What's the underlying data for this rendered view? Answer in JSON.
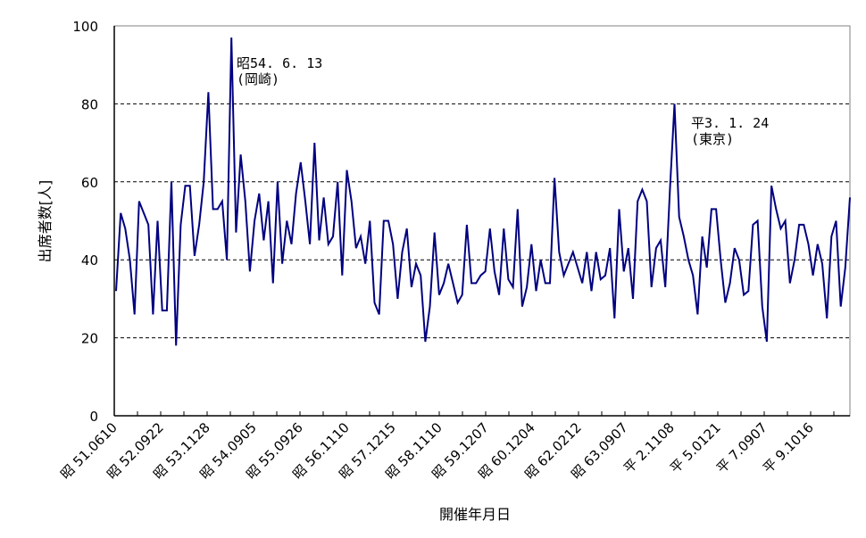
{
  "chart_data": {
    "type": "line",
    "title": "",
    "xlabel": "開催年月日",
    "ylabel": "出席者数[人]",
    "ylim": [
      0,
      100
    ],
    "yticks": [
      0,
      20,
      40,
      60,
      80,
      100
    ],
    "grid": {
      "y": true,
      "style": "dashed",
      "x": false
    },
    "legend": null,
    "line_color": "#000080",
    "x_tick_labels": [
      "昭 51.0610",
      "昭 52.0922",
      "昭 53.1128",
      "昭 54.0905",
      "昭 55.0926",
      "昭 56.1110",
      "昭 57.1215",
      "昭 58.1110",
      "昭 59.1207",
      "昭 60.1204",
      "昭 62.0212",
      "昭 63.0907",
      "平 2.1108",
      "平 5.0121",
      "平 7.0907",
      "平 9.1016"
    ],
    "annotations": [
      {
        "line1": "昭54. 6. 13",
        "line2": "(岡崎)",
        "value": 97
      },
      {
        "line1": "平3. 1. 24",
        "line2": "(東京)",
        "value": 80
      }
    ],
    "series": [
      {
        "name": "出席者数",
        "values": [
          32,
          52,
          48,
          40,
          26,
          55,
          52,
          49,
          26,
          50,
          27,
          27,
          60,
          18,
          49,
          59,
          59,
          41,
          49,
          60,
          83,
          53,
          53,
          55,
          40,
          97,
          47,
          67,
          55,
          37,
          50,
          57,
          45,
          55,
          34,
          60,
          39,
          50,
          44,
          57,
          65,
          55,
          44,
          70,
          45,
          56,
          44,
          46,
          60,
          36,
          63,
          55,
          43,
          46,
          39,
          50,
          29,
          26,
          50,
          50,
          44,
          30,
          42,
          48,
          33,
          39,
          36,
          19,
          28,
          47,
          31,
          34,
          39,
          34,
          29,
          31,
          49,
          34,
          34,
          36,
          37,
          48,
          37,
          31,
          48,
          35,
          33,
          53,
          28,
          33,
          44,
          32,
          40,
          34,
          34,
          61,
          42,
          36,
          39,
          42,
          38,
          34,
          42,
          32,
          42,
          35,
          36,
          43,
          25,
          53,
          37,
          43,
          30,
          55,
          58,
          55,
          33,
          43,
          45,
          33,
          58,
          80,
          51,
          46,
          40,
          36,
          26,
          46,
          38,
          53,
          53,
          40,
          29,
          34,
          43,
          40,
          31,
          32,
          49,
          50,
          28,
          19,
          59,
          53,
          48,
          50,
          34,
          40,
          49,
          49,
          44,
          36,
          44,
          39,
          25,
          46,
          50,
          28,
          38,
          56
        ]
      }
    ]
  }
}
